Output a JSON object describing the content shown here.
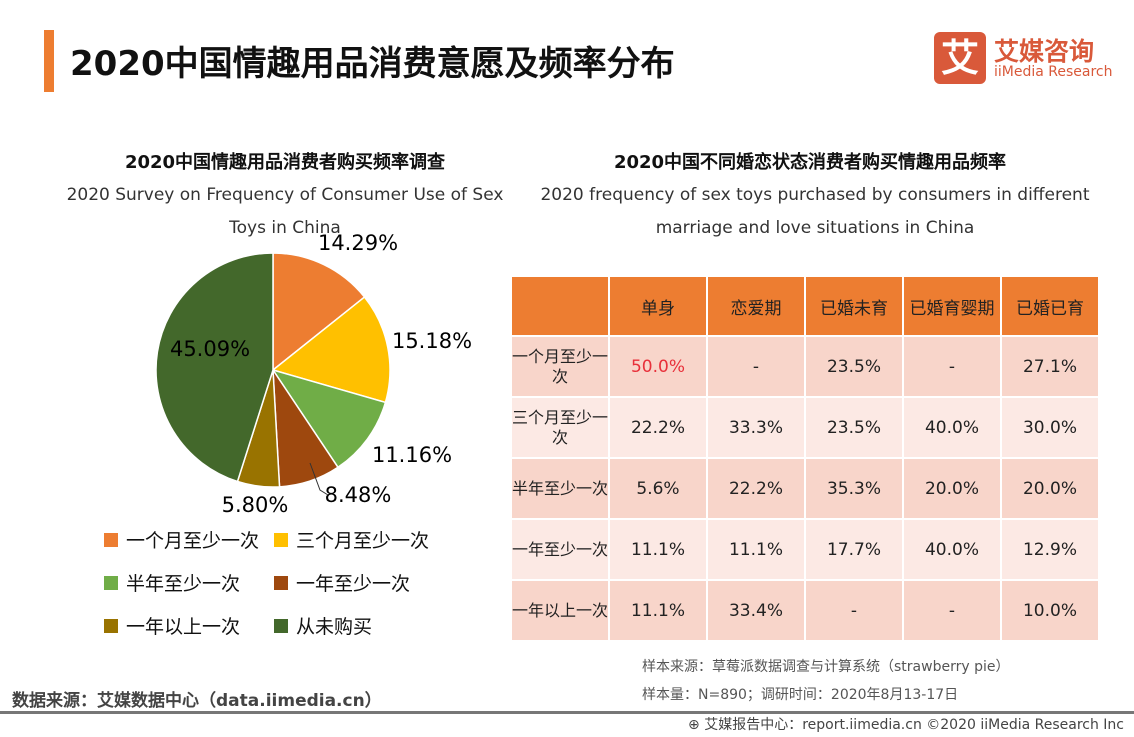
{
  "header": {
    "title": "2020中国情趣用品消费意愿及频率分布",
    "logo_mark": "艾",
    "logo_cn": "艾媒咨询",
    "logo_en": "iiMedia Research"
  },
  "chart_data": [
    {
      "type": "pie",
      "title": "2020中国情趣用品消费者购买频率调查",
      "subtitle": "2020 Survey on Frequency of Consumer Use of Sex Toys in China",
      "slices": [
        {
          "name": "一个月至少一次",
          "value": 14.29,
          "label": "14.29%",
          "color": "#ED7D31"
        },
        {
          "name": "三个月至少一次",
          "value": 15.18,
          "label": "15.18%",
          "color": "#FFC000"
        },
        {
          "name": "半年至少一次",
          "value": 11.16,
          "label": "11.16%",
          "color": "#70AD47"
        },
        {
          "name": "一年至少一次",
          "value": 8.48,
          "label": "8.48%",
          "color": "#9E480E"
        },
        {
          "name": "一年以上一次",
          "value": 5.8,
          "label": "5.80%",
          "color": "#997300"
        },
        {
          "name": "从未购买",
          "value": 45.09,
          "label": "45.09%",
          "color": "#43682B"
        }
      ],
      "legend": "bottom"
    },
    {
      "type": "table",
      "title": "2020中国不同婚恋状态消费者购买情趣用品频率",
      "subtitle": "2020 frequency of sex toys purchased by consumers in different marriage and love situations in China",
      "columns": [
        "",
        "单身",
        "恋爱期",
        "已婚未育",
        "已婚育婴期",
        "已婚已育"
      ],
      "rows": [
        {
          "label": "一个月至少一次",
          "cells": [
            "50.0%",
            "-",
            "23.5%",
            "-",
            "27.1%"
          ]
        },
        {
          "label": "三个月至少一次",
          "cells": [
            "22.2%",
            "33.3%",
            "23.5%",
            "40.0%",
            "30.0%"
          ]
        },
        {
          "label": "半年至少一次",
          "cells": [
            "5.6%",
            "22.2%",
            "35.3%",
            "20.0%",
            "20.0%"
          ]
        },
        {
          "label": "一年至少一次",
          "cells": [
            "11.1%",
            "11.1%",
            "17.7%",
            "40.0%",
            "12.9%"
          ]
        },
        {
          "label": "一年以上一次",
          "cells": [
            "11.1%",
            "33.4%",
            "-",
            "-",
            "10.0%"
          ]
        }
      ],
      "highlight_color": "#E8303A"
    }
  ],
  "notes": {
    "sample_source": "样本来源：草莓派数据调查与计算系统（strawberry pie）",
    "sample_size": "样本量：N=890；调研时间：2020年8月13-17日"
  },
  "footer": {
    "data_source": "数据来源：艾媒数据中心（data.iimedia.cn）",
    "report": "艾媒报告中心：report.iimedia.cn   ©2020  iiMedia Research  Inc"
  }
}
